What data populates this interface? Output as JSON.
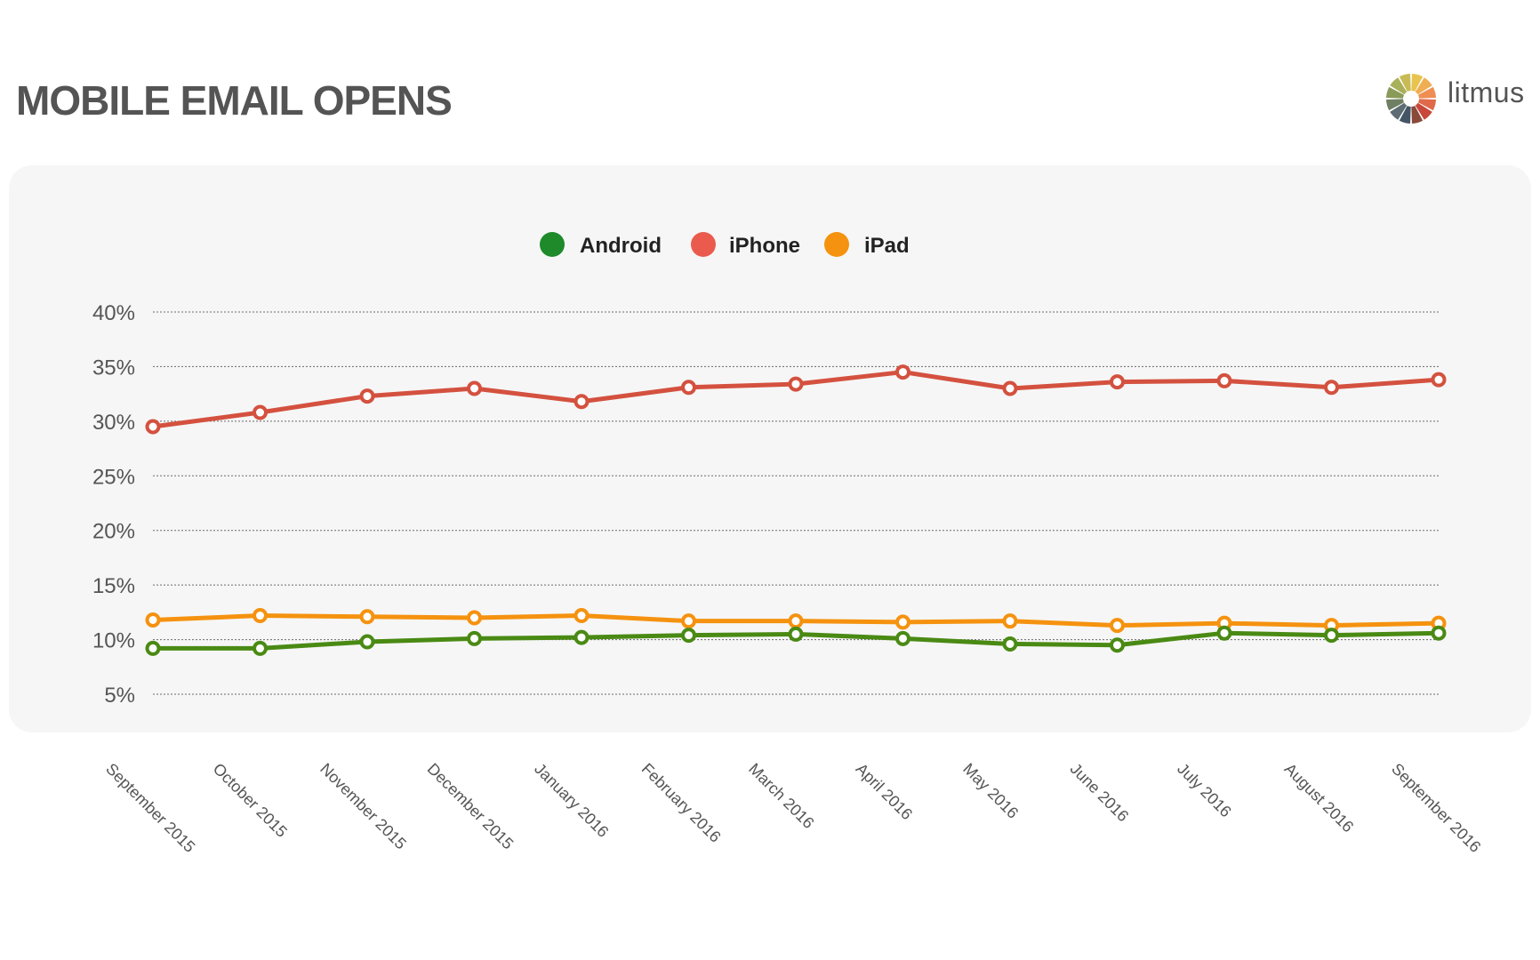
{
  "header": {
    "title": "MOBILE EMAIL OPENS",
    "logo_text": "litmus"
  },
  "colors": {
    "Android": "#4a8a14",
    "iPhone": "#d4513f",
    "iPad": "#f5920f",
    "legend_Android": "#1e8a2a",
    "legend_iPhone": "#ea5b4e",
    "legend_iPad": "#f5920f"
  },
  "chart_data": {
    "type": "line",
    "title": "MOBILE EMAIL OPENS",
    "legend_position": "top-center",
    "grid": true,
    "ylim": [
      5,
      40
    ],
    "yticks": [
      "40%",
      "35%",
      "30%",
      "25%",
      "20%",
      "15%",
      "10%",
      "5%"
    ],
    "ytick_values": [
      40,
      35,
      30,
      25,
      20,
      15,
      10,
      5
    ],
    "categories": [
      "September 2015",
      "October 2015",
      "November 2015",
      "December 2015",
      "January 2016",
      "February 2016",
      "March 2016",
      "April 2016",
      "May 2016",
      "June 2016",
      "July 2016",
      "August 2016",
      "September 2016"
    ],
    "series": [
      {
        "name": "Android",
        "values": [
          9.2,
          9.2,
          9.8,
          10.1,
          10.2,
          10.4,
          10.5,
          10.1,
          9.6,
          9.5,
          10.6,
          10.4,
          10.6
        ]
      },
      {
        "name": "iPhone",
        "values": [
          29.5,
          30.8,
          32.3,
          33.0,
          31.8,
          33.1,
          33.4,
          34.5,
          33.0,
          33.6,
          33.7,
          33.1,
          33.8
        ]
      },
      {
        "name": "iPad",
        "values": [
          11.8,
          12.2,
          12.1,
          12.0,
          12.2,
          11.7,
          11.7,
          11.6,
          11.7,
          11.3,
          11.5,
          11.3,
          11.5
        ]
      }
    ]
  }
}
